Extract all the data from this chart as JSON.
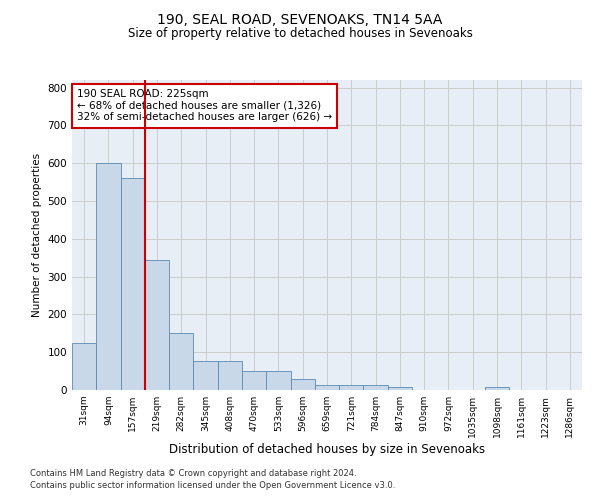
{
  "title1": "190, SEAL ROAD, SEVENOAKS, TN14 5AA",
  "title2": "Size of property relative to detached houses in Sevenoaks",
  "xlabel": "Distribution of detached houses by size in Sevenoaks",
  "ylabel": "Number of detached properties",
  "categories": [
    "31sqm",
    "94sqm",
    "157sqm",
    "219sqm",
    "282sqm",
    "345sqm",
    "408sqm",
    "470sqm",
    "533sqm",
    "596sqm",
    "659sqm",
    "721sqm",
    "784sqm",
    "847sqm",
    "910sqm",
    "972sqm",
    "1035sqm",
    "1098sqm",
    "1161sqm",
    "1223sqm",
    "1286sqm"
  ],
  "values": [
    125,
    600,
    560,
    345,
    150,
    78,
    78,
    50,
    50,
    30,
    14,
    13,
    12,
    7,
    0,
    0,
    0,
    8,
    0,
    0,
    0
  ],
  "bar_color": "#c8d8e8",
  "bar_edge_color": "#5b8ab5",
  "vline_x_index": 3,
  "vline_color": "#cc0000",
  "annotation_text": "190 SEAL ROAD: 225sqm\n← 68% of detached houses are smaller (1,326)\n32% of semi-detached houses are larger (626) →",
  "annotation_box_color": "#ffffff",
  "annotation_box_edge": "#cc0000",
  "ylim": [
    0,
    820
  ],
  "yticks": [
    0,
    100,
    200,
    300,
    400,
    500,
    600,
    700,
    800
  ],
  "background_color": "#ffffff",
  "plot_bg_color": "#e8eef5",
  "grid_color": "#cccccc",
  "footnote1": "Contains HM Land Registry data © Crown copyright and database right 2024.",
  "footnote2": "Contains public sector information licensed under the Open Government Licence v3.0."
}
